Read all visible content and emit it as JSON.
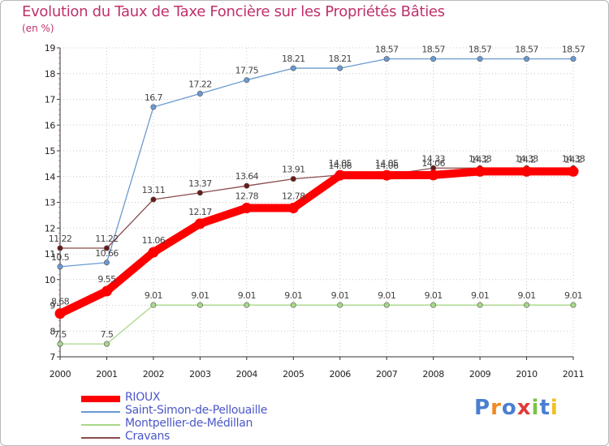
{
  "header": {
    "title": "Evolution du Taux de Taxe Foncière sur les Propriétés Bâties",
    "unit": "(en %)"
  },
  "logo": {
    "text": "Proxiti"
  },
  "chart_data": {
    "type": "line",
    "title": "Evolution du Taux de Taxe Foncière sur les Propriétés Bâties",
    "ylabel": "(en %)",
    "xlabel": "",
    "x": [
      "2000",
      "2001",
      "2002",
      "2003",
      "2004",
      "2005",
      "2006",
      "2007",
      "2008",
      "2009",
      "2010",
      "2011"
    ],
    "ylim": [
      7,
      19
    ],
    "yticks": [
      7,
      8,
      9,
      10,
      11,
      12,
      13,
      14,
      15,
      16,
      17,
      18,
      19
    ],
    "series": [
      {
        "name": "Saint-Simon-de-Pellouaille",
        "color": "#6a9bd0",
        "values": [
          10.5,
          10.66,
          16.7,
          17.22,
          17.75,
          18.21,
          18.21,
          18.57,
          18.57,
          18.57,
          18.57,
          18.57
        ],
        "labels": [
          "10.5",
          "10.66",
          "16.7",
          "17.22",
          "17.75",
          "18.21",
          "18.21",
          "18.57",
          "18.57",
          "18.57",
          "18.57",
          "18.57"
        ]
      },
      {
        "name": "Montpellier-de-Médillan",
        "color": "#a8d888",
        "values": [
          7.5,
          7.5,
          9.01,
          9.01,
          9.01,
          9.01,
          9.01,
          9.01,
          9.01,
          9.01,
          9.01,
          9.01
        ],
        "labels": [
          "7.5",
          "7.5",
          "9.01",
          "9.01",
          "9.01",
          "9.01",
          "9.01",
          "9.01",
          "9.01",
          "9.01",
          "9.01",
          "9.01"
        ]
      },
      {
        "name": "Cravans",
        "color": "#8b4a4a",
        "values": [
          11.22,
          11.22,
          13.11,
          13.37,
          13.64,
          13.91,
          14.06,
          14.06,
          14.33,
          14.33,
          14.33,
          14.33
        ],
        "labels": [
          "11.22",
          "11.22",
          "13.11",
          "13.37",
          "13.64",
          "13.91",
          "14.06",
          "14.06",
          "14.33",
          "14.33",
          "14.33",
          "14.33"
        ]
      },
      {
        "name": "RIOUX",
        "color": "#ff0000",
        "values": [
          8.68,
          9.55,
          11.06,
          12.17,
          12.78,
          12.78,
          14.05,
          14.05,
          14.06,
          14.2,
          14.2,
          14.2
        ],
        "labels": [
          "8.68",
          "9.55",
          "11.06",
          "12.17",
          "12.78",
          "12.78",
          "14.05",
          "14.05",
          "14.06",
          "14.2",
          "14.2",
          "14.2"
        ]
      }
    ],
    "legend": [
      "RIOUX",
      "Saint-Simon-de-Pellouaille",
      "Montpellier-de-Médillan",
      "Cravans"
    ],
    "legend_colors": [
      "#ff0000",
      "#6a9bd0",
      "#a8d888",
      "#8b4a4a"
    ]
  }
}
